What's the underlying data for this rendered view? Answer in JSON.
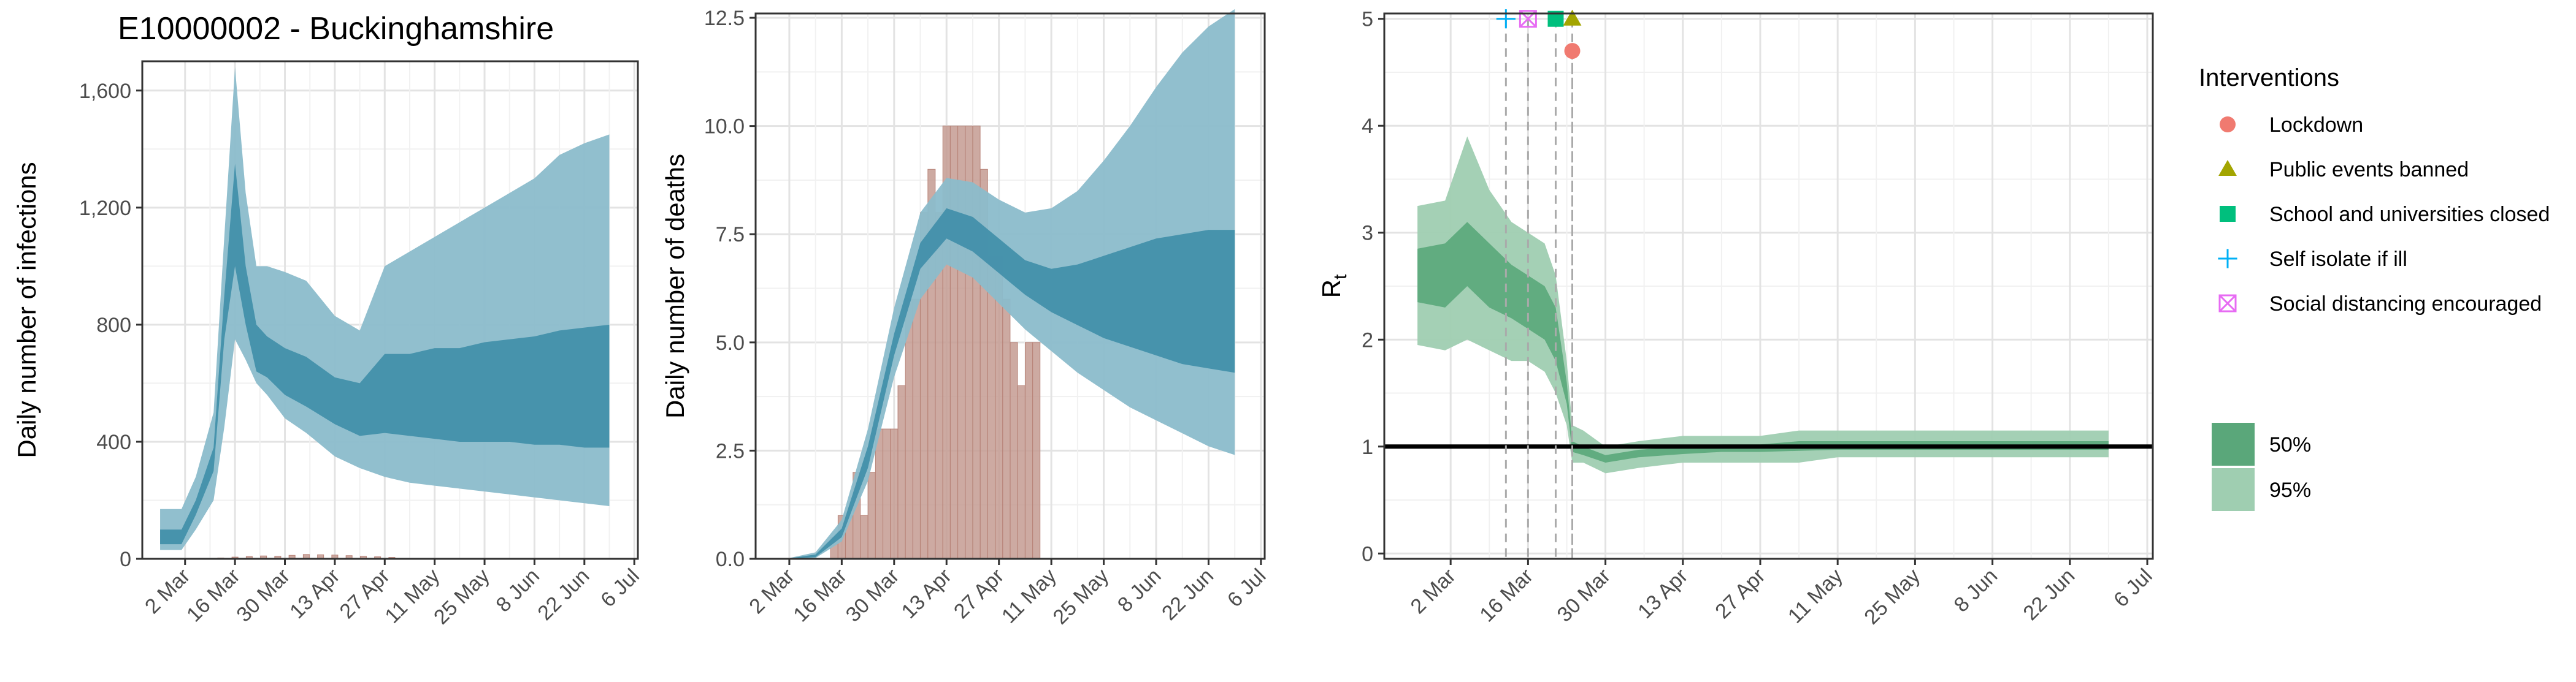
{
  "title": "E10000002 - Buckinghamshire",
  "date_ticks": [
    "2 Mar",
    "16 Mar",
    "30 Mar",
    "13 Apr",
    "27 Apr",
    "11 May",
    "25 May",
    "8 Jun",
    "22 Jun",
    "6 Jul"
  ],
  "colors": {
    "infections_outer": "#8bbccb",
    "infections_inner": "#3f8ea8",
    "observed_bars": "#c49b92",
    "rt_outer": "#9fceb1",
    "rt_inner": "#5aa77a",
    "lockdown": "#f07a70",
    "public_events": "#a3a500",
    "schools": "#00bf7d",
    "self_isolate": "#00b0f6",
    "social_distancing": "#e76bf3"
  },
  "legend": {
    "interventions_title": "Interventions",
    "interventions": [
      {
        "label": "Lockdown",
        "shape": "circle",
        "color": "#f07a70"
      },
      {
        "label": "Public events banned",
        "shape": "triangle",
        "color": "#a3a500"
      },
      {
        "label": "School and universities closed",
        "shape": "square",
        "color": "#00bf7d"
      },
      {
        "label": "Self isolate if ill",
        "shape": "plus",
        "color": "#00b0f6"
      },
      {
        "label": "Social distancing encouraged",
        "shape": "boxed-x",
        "color": "#e76bf3"
      }
    ],
    "intervals": [
      {
        "label": "50%",
        "color": "#5aa77a"
      },
      {
        "label": "95%",
        "color": "#9fceb1"
      }
    ]
  },
  "chart_data": [
    {
      "type": "area",
      "ylabel": "Daily number of infections",
      "xlim": [
        "2020-02-19",
        "2020-07-07"
      ],
      "ylim": [
        0,
        1700
      ],
      "yticks": [
        0,
        400,
        800,
        1200,
        1600
      ],
      "ytick_labels": [
        "0",
        "400",
        "800",
        "1,200",
        "1,600"
      ],
      "series": [
        {
          "name": "95%",
          "x": [
            "2020-02-24",
            "2020-03-01",
            "2020-03-05",
            "2020-03-10",
            "2020-03-13",
            "2020-03-16",
            "2020-03-19",
            "2020-03-22",
            "2020-03-25",
            "2020-03-30",
            "2020-04-05",
            "2020-04-13",
            "2020-04-20",
            "2020-04-27",
            "2020-05-04",
            "2020-05-11",
            "2020-05-18",
            "2020-05-25",
            "2020-06-01",
            "2020-06-08",
            "2020-06-15",
            "2020-06-22",
            "2020-06-29"
          ],
          "upper": [
            170,
            170,
            280,
            500,
            1100,
            1680,
            1250,
            1000,
            1000,
            980,
            950,
            830,
            780,
            1000,
            1050,
            1100,
            1150,
            1200,
            1250,
            1300,
            1380,
            1420,
            1450
          ],
          "lower": [
            30,
            30,
            100,
            200,
            450,
            750,
            680,
            600,
            560,
            480,
            430,
            350,
            310,
            280,
            260,
            250,
            240,
            230,
            220,
            210,
            200,
            190,
            180
          ]
        },
        {
          "name": "50%",
          "x": [
            "2020-02-24",
            "2020-03-01",
            "2020-03-05",
            "2020-03-10",
            "2020-03-13",
            "2020-03-16",
            "2020-03-19",
            "2020-03-22",
            "2020-03-25",
            "2020-03-30",
            "2020-04-05",
            "2020-04-13",
            "2020-04-20",
            "2020-04-27",
            "2020-05-04",
            "2020-05-11",
            "2020-05-18",
            "2020-05-25",
            "2020-06-01",
            "2020-06-08",
            "2020-06-15",
            "2020-06-22",
            "2020-06-29"
          ],
          "upper": [
            100,
            100,
            200,
            380,
            900,
            1350,
            1000,
            800,
            760,
            720,
            690,
            620,
            600,
            700,
            700,
            720,
            720,
            740,
            750,
            760,
            780,
            790,
            800
          ],
          "lower": [
            50,
            50,
            150,
            300,
            750,
            1000,
            800,
            640,
            620,
            560,
            520,
            460,
            420,
            430,
            420,
            410,
            400,
            400,
            400,
            390,
            390,
            380,
            380
          ]
        }
      ],
      "bars": {
        "name": "observed",
        "x": [
          "2020-03-12",
          "2020-03-16",
          "2020-03-20",
          "2020-03-24",
          "2020-03-28",
          "2020-04-01",
          "2020-04-05",
          "2020-04-09",
          "2020-04-13",
          "2020-04-17",
          "2020-04-21",
          "2020-04-25",
          "2020-04-29"
        ],
        "values": [
          3,
          6,
          8,
          10,
          9,
          12,
          15,
          14,
          13,
          11,
          9,
          7,
          5
        ]
      }
    },
    {
      "type": "area",
      "ylabel": "Daily number of deaths",
      "xlim": [
        "2020-02-22",
        "2020-07-07"
      ],
      "ylim": [
        0,
        12.6
      ],
      "yticks": [
        0,
        2.5,
        5,
        7.5,
        10,
        12.5
      ],
      "ytick_labels": [
        "0.0",
        "2.5",
        "5.0",
        "7.5",
        "10.0",
        "12.5"
      ],
      "series": [
        {
          "name": "95%",
          "x": [
            "2020-03-02",
            "2020-03-09",
            "2020-03-16",
            "2020-03-23",
            "2020-03-30",
            "2020-04-06",
            "2020-04-13",
            "2020-04-20",
            "2020-04-27",
            "2020-05-04",
            "2020-05-11",
            "2020-05-18",
            "2020-05-25",
            "2020-06-01",
            "2020-06-08",
            "2020-06-15",
            "2020-06-22",
            "2020-06-29"
          ],
          "upper": [
            0.02,
            0.15,
            0.9,
            3.0,
            5.8,
            8.0,
            8.8,
            8.7,
            8.3,
            8.0,
            8.1,
            8.5,
            9.2,
            10.0,
            10.9,
            11.7,
            12.3,
            12.7
          ],
          "lower": [
            0,
            0.02,
            0.4,
            1.8,
            4.2,
            6.0,
            6.8,
            6.5,
            5.9,
            5.3,
            4.8,
            4.3,
            3.9,
            3.5,
            3.2,
            2.9,
            2.6,
            2.4
          ]
        },
        {
          "name": "50%",
          "x": [
            "2020-03-02",
            "2020-03-09",
            "2020-03-16",
            "2020-03-23",
            "2020-03-30",
            "2020-04-06",
            "2020-04-13",
            "2020-04-20",
            "2020-04-27",
            "2020-05-04",
            "2020-05-11",
            "2020-05-18",
            "2020-05-25",
            "2020-06-01",
            "2020-06-08",
            "2020-06-15",
            "2020-06-22",
            "2020-06-29"
          ],
          "upper": [
            0.01,
            0.1,
            0.7,
            2.6,
            5.2,
            7.3,
            8.1,
            7.9,
            7.4,
            6.9,
            6.7,
            6.8,
            7.0,
            7.2,
            7.4,
            7.5,
            7.6,
            7.6
          ],
          "lower": [
            0,
            0.04,
            0.5,
            2.1,
            4.7,
            6.7,
            7.4,
            7.1,
            6.6,
            6.1,
            5.7,
            5.4,
            5.1,
            4.9,
            4.7,
            4.5,
            4.4,
            4.3
          ]
        }
      ],
      "bars": {
        "name": "observed",
        "x": [
          "2020-03-14",
          "2020-03-16",
          "2020-03-18",
          "2020-03-20",
          "2020-03-22",
          "2020-03-24",
          "2020-03-26",
          "2020-03-28",
          "2020-03-30",
          "2020-04-01",
          "2020-04-03",
          "2020-04-05",
          "2020-04-07",
          "2020-04-09",
          "2020-04-11",
          "2020-04-13",
          "2020-04-15",
          "2020-04-17",
          "2020-04-19",
          "2020-04-21",
          "2020-04-23",
          "2020-04-25",
          "2020-04-27",
          "2020-04-29",
          "2020-05-01",
          "2020-05-03",
          "2020-05-05",
          "2020-05-07"
        ],
        "values": [
          0.5,
          1,
          1,
          2,
          1,
          2,
          3,
          3,
          3,
          4,
          6,
          6,
          8,
          9,
          8,
          10,
          10,
          10,
          10,
          10,
          9,
          7,
          7,
          6,
          5,
          4,
          5,
          5
        ]
      }
    },
    {
      "type": "area",
      "ylabel": "R",
      "ylabel_subscript": "t",
      "xlim": [
        "2020-02-19",
        "2020-07-07"
      ],
      "ylim": [
        -0.05,
        5.05
      ],
      "yticks": [
        0,
        1,
        2,
        3,
        4,
        5
      ],
      "ytick_labels": [
        "0",
        "1",
        "2",
        "3",
        "4",
        "5"
      ],
      "reference_line": 1,
      "series": [
        {
          "name": "95%",
          "x": [
            "2020-02-25",
            "2020-03-01",
            "2020-03-05",
            "2020-03-09",
            "2020-03-13",
            "2020-03-16",
            "2020-03-19",
            "2020-03-21",
            "2020-03-23",
            "2020-03-24",
            "2020-03-26",
            "2020-03-30",
            "2020-04-05",
            "2020-04-13",
            "2020-04-20",
            "2020-04-27",
            "2020-05-04",
            "2020-05-11",
            "2020-05-18",
            "2020-05-25",
            "2020-06-01",
            "2020-06-08",
            "2020-06-15",
            "2020-06-22",
            "2020-06-29"
          ],
          "upper": [
            3.25,
            3.3,
            3.9,
            3.4,
            3.1,
            3.0,
            2.9,
            2.6,
            1.8,
            1.2,
            1.15,
            1.0,
            1.05,
            1.1,
            1.1,
            1.1,
            1.15,
            1.15,
            1.15,
            1.15,
            1.15,
            1.15,
            1.15,
            1.15,
            1.15
          ],
          "lower": [
            1.95,
            1.9,
            2.0,
            1.9,
            1.8,
            1.8,
            1.7,
            1.5,
            1.2,
            0.85,
            0.85,
            0.75,
            0.8,
            0.85,
            0.85,
            0.85,
            0.85,
            0.9,
            0.9,
            0.9,
            0.9,
            0.9,
            0.9,
            0.9,
            0.9
          ]
        },
        {
          "name": "50%",
          "x": [
            "2020-02-25",
            "2020-03-01",
            "2020-03-05",
            "2020-03-09",
            "2020-03-13",
            "2020-03-16",
            "2020-03-19",
            "2020-03-21",
            "2020-03-23",
            "2020-03-24",
            "2020-03-26",
            "2020-03-30",
            "2020-04-05",
            "2020-04-13",
            "2020-04-20",
            "2020-04-27",
            "2020-05-04",
            "2020-05-11",
            "2020-05-18",
            "2020-05-25",
            "2020-06-01",
            "2020-06-08",
            "2020-06-15",
            "2020-06-22",
            "2020-06-29"
          ],
          "upper": [
            2.85,
            2.9,
            3.1,
            2.9,
            2.7,
            2.6,
            2.5,
            2.3,
            1.6,
            1.05,
            1.0,
            0.92,
            0.97,
            1.0,
            1.02,
            1.02,
            1.05,
            1.05,
            1.05,
            1.05,
            1.05,
            1.05,
            1.05,
            1.05,
            1.05
          ],
          "lower": [
            2.35,
            2.3,
            2.5,
            2.3,
            2.2,
            2.1,
            2.0,
            1.8,
            1.4,
            0.95,
            0.92,
            0.85,
            0.9,
            0.93,
            0.95,
            0.95,
            0.96,
            0.97,
            0.97,
            0.97,
            0.97,
            0.97,
            0.97,
            0.97,
            0.97
          ]
        }
      ],
      "interventions": [
        {
          "label": "Self isolate if ill",
          "date": "2020-03-12",
          "marker_y": 5.0
        },
        {
          "label": "Social distancing encouraged",
          "date": "2020-03-16",
          "marker_y": 5.0
        },
        {
          "label": "School and universities closed",
          "date": "2020-03-21",
          "marker_y": 5.0
        },
        {
          "label": "Public events banned",
          "date": "2020-03-24",
          "marker_y": 5.0
        },
        {
          "label": "Lockdown",
          "date": "2020-03-24",
          "marker_y": 4.7
        }
      ]
    }
  ]
}
